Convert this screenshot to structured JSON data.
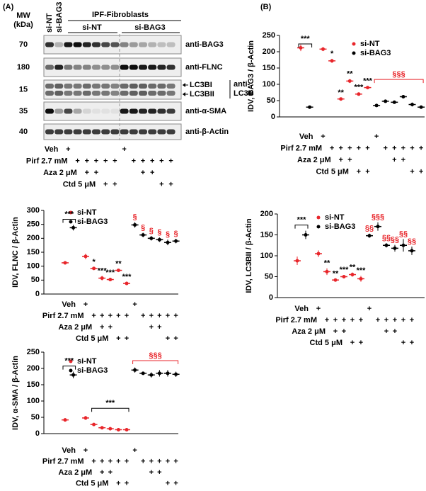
{
  "panel_labels": [
    "(A)",
    "(B)"
  ],
  "blot": {
    "mw_label": [
      "MW",
      "(kDa)"
    ],
    "lane_labels": [
      "si-NT",
      "si-BAG3"
    ],
    "group_title": "IPF-Fibroblasts",
    "groups": [
      "si-NT",
      "si-BAG3"
    ],
    "rows": [
      {
        "mw": 70,
        "label": "anti-BAG3"
      },
      {
        "mw": 180,
        "label": "anti-FLNC"
      },
      {
        "mw": 15,
        "label": [
          "anti-",
          "LC3B"
        ],
        "bands": [
          "LC3BI",
          "LC3BII"
        ]
      },
      {
        "mw": 35,
        "label": "anti-α-SMA"
      },
      {
        "mw": 40,
        "label": "anti-β-Actin"
      }
    ]
  },
  "treatments": {
    "rows": [
      {
        "label": "Veh",
        "plus": [
          "+",
          null,
          null,
          null,
          null,
          null,
          "+",
          null,
          null,
          null,
          null,
          null
        ]
      },
      {
        "label": "Pirf 2.7 mM",
        "plus": [
          null,
          "+",
          "+",
          "+",
          "+",
          "+",
          null,
          "+",
          "+",
          "+",
          "+",
          "+"
        ]
      },
      {
        "label": "Aza 2 μM",
        "plus": [
          null,
          null,
          "+",
          "+",
          null,
          null,
          null,
          null,
          "+",
          "+",
          null,
          null
        ]
      },
      {
        "label": "Ctd 5 μM",
        "plus": [
          null,
          null,
          null,
          null,
          "+",
          "+",
          null,
          null,
          null,
          null,
          "+",
          "+"
        ]
      }
    ]
  },
  "chart_data": [
    {
      "type": "dot",
      "y_label": "IDV, BAG3 / β-Actin",
      "legend": "top",
      "categories": [
        null,
        null,
        null,
        null,
        null,
        null,
        null,
        null,
        null,
        null,
        null,
        null,
        null,
        null
      ],
      "series": [
        {
          "name": "si-NT",
          "color": "#e8262b",
          "sig_color": "#000000",
          "values": [
            212,
            null,
            208,
            172,
            55,
            110,
            70,
            90,
            null,
            null,
            null,
            null,
            null,
            null
          ],
          "errors": [
            10,
            null,
            6,
            6,
            4,
            6,
            5,
            4,
            null,
            null,
            null,
            null,
            null,
            null
          ],
          "sig": [
            null,
            null,
            null,
            "*",
            "**",
            "**",
            "***",
            "***",
            null,
            null,
            null,
            null,
            null,
            null
          ]
        },
        {
          "name": "si-BAG3",
          "color": "#000000",
          "sig_color": "#e8262b",
          "values": [
            null,
            30,
            null,
            null,
            null,
            null,
            null,
            null,
            35,
            48,
            45,
            62,
            38,
            30
          ],
          "errors": [
            null,
            4,
            null,
            null,
            null,
            null,
            null,
            null,
            3,
            3,
            4,
            5,
            6,
            5
          ],
          "sig": [
            null,
            null,
            null,
            null,
            null,
            null,
            null,
            null,
            null,
            null,
            null,
            null,
            null,
            null
          ]
        }
      ],
      "ylim": [
        0,
        250
      ],
      "yticks": [
        0,
        50,
        100,
        150,
        200,
        250
      ],
      "annotations": [
        {
          "text": "***",
          "from": 0,
          "to": 1,
          "color": "#000000"
        },
        {
          "text": "§§§",
          "from": 8,
          "to": 13,
          "color": "#e8262b"
        }
      ]
    },
    {
      "type": "dot",
      "y_label": "IDV, FLNC / β-Actin",
      "legend": "top",
      "categories": [
        null,
        null,
        null,
        null,
        null,
        null,
        null,
        null,
        null,
        null,
        null,
        null,
        null,
        null
      ],
      "series": [
        {
          "name": "si-NT",
          "color": "#e8262b",
          "sig_color": "#000000",
          "values": [
            112,
            null,
            135,
            92,
            57,
            52,
            85,
            38,
            null,
            null,
            null,
            null,
            null,
            null
          ],
          "errors": [
            6,
            null,
            10,
            5,
            8,
            6,
            5,
            5,
            null,
            null,
            null,
            null,
            null,
            null
          ],
          "sig": [
            null,
            null,
            null,
            "*",
            "***",
            "***",
            "**",
            "***",
            null,
            null,
            null,
            null,
            null,
            null
          ]
        },
        {
          "name": "si-BAG3",
          "color": "#000000",
          "sig_color": "#e8262b",
          "values": [
            null,
            238,
            null,
            null,
            null,
            null,
            null,
            null,
            248,
            212,
            200,
            195,
            185,
            190
          ],
          "errors": [
            null,
            10,
            null,
            null,
            null,
            null,
            null,
            null,
            10,
            8,
            8,
            8,
            10,
            8
          ],
          "sig": [
            null,
            null,
            null,
            null,
            null,
            null,
            null,
            null,
            "§",
            "§",
            "§",
            "§",
            "§",
            "§"
          ]
        }
      ],
      "ylim": [
        0,
        300
      ],
      "yticks": [
        0,
        50,
        100,
        150,
        200,
        250,
        300
      ],
      "annotations": [
        {
          "text": "***",
          "from": 0,
          "to": 1,
          "color": "#000000"
        }
      ]
    },
    {
      "type": "dot",
      "y_label": "IDV, α-SMA / β-Actin",
      "legend": "top",
      "categories": [
        null,
        null,
        null,
        null,
        null,
        null,
        null,
        null,
        null,
        null,
        null,
        null,
        null,
        null
      ],
      "series": [
        {
          "name": "si-NT",
          "color": "#e8262b",
          "sig_color": "#000000",
          "values": [
            42,
            null,
            48,
            28,
            18,
            15,
            12,
            12,
            null,
            null,
            null,
            null,
            null,
            null
          ],
          "errors": [
            5,
            null,
            6,
            2,
            2,
            2,
            2,
            1,
            null,
            null,
            null,
            null,
            null,
            null
          ],
          "sig": [
            null,
            null,
            null,
            null,
            null,
            null,
            null,
            null,
            null,
            null,
            null,
            null,
            null,
            null
          ]
        },
        {
          "name": "si-BAG3",
          "color": "#000000",
          "sig_color": "#e8262b",
          "values": [
            null,
            180,
            null,
            null,
            null,
            null,
            null,
            null,
            195,
            185,
            180,
            185,
            185,
            182
          ],
          "errors": [
            null,
            10,
            null,
            null,
            null,
            null,
            null,
            null,
            8,
            5,
            8,
            10,
            10,
            8
          ],
          "sig": [
            null,
            null,
            null,
            null,
            null,
            null,
            null,
            null,
            null,
            null,
            null,
            null,
            null,
            null
          ]
        }
      ],
      "ylim": [
        0,
        250
      ],
      "yticks": [
        0,
        50,
        100,
        150,
        200,
        250
      ],
      "annotations": [
        {
          "text": "***",
          "from": 0,
          "to": 1,
          "color": "#000000"
        },
        {
          "text": "***",
          "from": 3,
          "to": 7,
          "color": "#000000"
        },
        {
          "text": "§§§",
          "from": 8,
          "to": 13,
          "color": "#e8262b"
        }
      ]
    },
    {
      "type": "dot",
      "y_label": "IDV, LC3BII / β-Actin",
      "legend": "top",
      "categories": [
        null,
        null,
        null,
        null,
        null,
        null,
        null,
        null,
        null,
        null,
        null,
        null,
        null,
        null
      ],
      "series": [
        {
          "name": "si-NT",
          "color": "#e8262b",
          "sig_color": "#000000",
          "values": [
            88,
            null,
            105,
            62,
            42,
            50,
            55,
            45,
            null,
            null,
            null,
            null,
            null,
            null
          ],
          "errors": [
            10,
            null,
            8,
            8,
            3,
            4,
            5,
            7,
            null,
            null,
            null,
            null,
            null,
            null
          ],
          "sig": [
            null,
            null,
            null,
            "**",
            "**",
            "***",
            "**",
            "***",
            null,
            null,
            null,
            null,
            null,
            null
          ]
        },
        {
          "name": "si-BAG3",
          "color": "#000000",
          "sig_color": "#e8262b",
          "values": [
            null,
            150,
            null,
            null,
            null,
            null,
            null,
            null,
            148,
            170,
            125,
            118,
            125,
            112
          ],
          "errors": [
            null,
            10,
            null,
            null,
            null,
            null,
            null,
            null,
            5,
            10,
            5,
            8,
            15,
            10
          ],
          "sig": [
            null,
            null,
            null,
            null,
            null,
            null,
            null,
            null,
            "§§",
            "§§§",
            "§§",
            "§§",
            "§§",
            "§§"
          ]
        }
      ],
      "ylim": [
        0,
        200
      ],
      "yticks": [
        0,
        50,
        100,
        150,
        200
      ],
      "annotations": [
        {
          "text": "***",
          "from": 0,
          "to": 1,
          "color": "#000000"
        }
      ]
    }
  ]
}
